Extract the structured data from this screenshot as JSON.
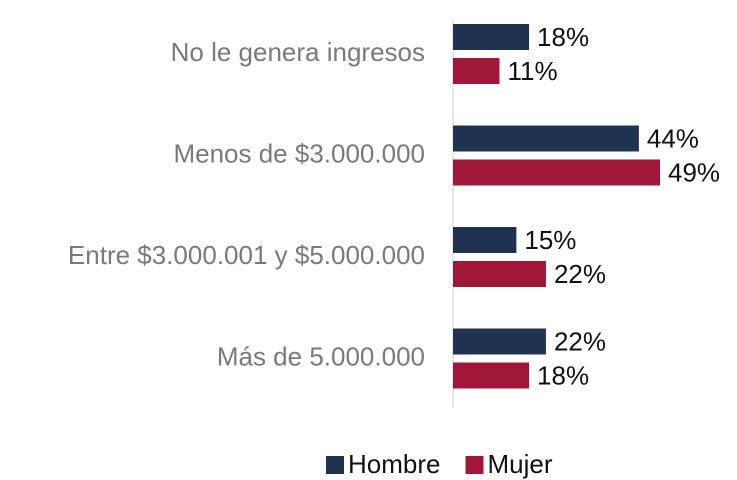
{
  "chart_data": {
    "type": "bar",
    "orientation": "horizontal",
    "categories": [
      "No le genera ingresos",
      "Menos de $3.000.000",
      "Entre $3.000.001 y $5.000.000",
      "Más de 5.000.000"
    ],
    "series": [
      {
        "name": "Hombre",
        "color": "#1f3350",
        "values": [
          18,
          44,
          15,
          22
        ],
        "value_labels": [
          "18%",
          "44%",
          "15%",
          "22%"
        ]
      },
      {
        "name": "Mujer",
        "color": "#a0173a",
        "values": [
          11,
          49,
          22,
          18
        ],
        "value_labels": [
          "11%",
          "49%",
          "22%",
          "18%"
        ]
      }
    ],
    "legend": "bottom"
  }
}
